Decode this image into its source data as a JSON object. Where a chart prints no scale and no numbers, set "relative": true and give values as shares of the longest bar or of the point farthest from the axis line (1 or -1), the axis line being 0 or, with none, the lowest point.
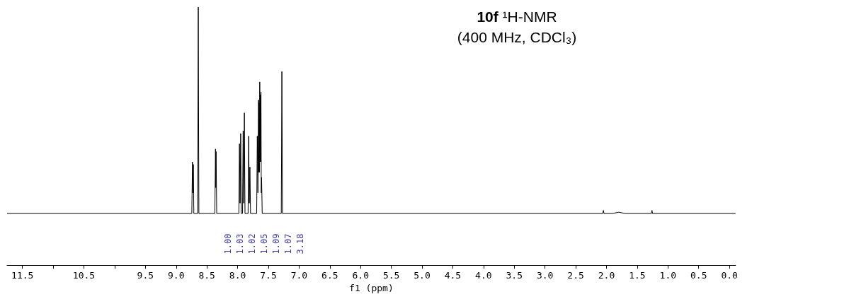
{
  "chart_data": {
    "type": "line",
    "title": "10f ¹H-NMR",
    "subtitle": "(400 MHz, CDCl₃)",
    "xlabel": "f1 (ppm)",
    "relative": true,
    "marker": "none",
    "grid": false,
    "xlim": [
      11.75,
      -0.1
    ],
    "xticks": [
      {
        "value": 11.5,
        "label": "11.5"
      },
      {
        "value": 11,
        "label": null
      },
      {
        "value": 10.5,
        "label": "10.5"
      },
      {
        "value": 10,
        "label": null
      },
      {
        "value": 9.5,
        "label": "9.5"
      },
      {
        "value": 9,
        "label": "9.0"
      },
      {
        "value": 8.5,
        "label": "8.5"
      },
      {
        "value": 8,
        "label": "8.0"
      },
      {
        "value": 7.5,
        "label": "7.5"
      },
      {
        "value": 7,
        "label": "7.0"
      },
      {
        "value": 6.5,
        "label": "6.5"
      },
      {
        "value": 6,
        "label": "6.0"
      },
      {
        "value": 5.5,
        "label": "5.5"
      },
      {
        "value": 5,
        "label": "5.0"
      },
      {
        "value": 4.5,
        "label": "4.5"
      },
      {
        "value": 4,
        "label": "4.0"
      },
      {
        "value": 3.5,
        "label": "3.5"
      },
      {
        "value": 3,
        "label": "3.0"
      },
      {
        "value": 2.5,
        "label": "2.5"
      },
      {
        "value": 2,
        "label": "2.0"
      },
      {
        "value": 1.5,
        "label": "1.5"
      },
      {
        "value": 1,
        "label": "1.0"
      },
      {
        "value": 0.5,
        "label": "0.5"
      },
      {
        "value": 0,
        "label": "0.0"
      }
    ],
    "series": [
      {
        "color": "#000000",
        "x": [
          11.75,
          8.745,
          8.735,
          8.728,
          8.72,
          8.712,
          8.65,
          8.64,
          8.63,
          8.37,
          8.36,
          8.355,
          8.35,
          8.34,
          7.98,
          7.97,
          7.96,
          7.95,
          7.94,
          7.92,
          7.91,
          7.9,
          7.89,
          7.88,
          7.83,
          7.82,
          7.81,
          7.8,
          7.79,
          7.69,
          7.68,
          7.67,
          7.66,
          7.655,
          7.65,
          7.645,
          7.64,
          7.635,
          7.63,
          7.625,
          7.62,
          7.615,
          7.61,
          7.6,
          7.29,
          7.28,
          7.27,
          2.06,
          2.05,
          2.04,
          1.9,
          1.8,
          1.7,
          1.27,
          1.26,
          1.25,
          -0.1
        ],
        "values": [
          0.2,
          0.2,
          0.4,
          0.28,
          0.39,
          0.2,
          0.2,
          1.0,
          0.2,
          0.2,
          0.45,
          0.3,
          0.44,
          0.2,
          0.2,
          0.47,
          0.24,
          0.51,
          0.2,
          0.2,
          0.52,
          0.24,
          0.59,
          0.2,
          0.2,
          0.5,
          0.24,
          0.38,
          0.2,
          0.2,
          0.5,
          0.28,
          0.64,
          0.36,
          0.63,
          0.36,
          0.71,
          0.4,
          0.66,
          0.4,
          0.67,
          0.28,
          0.34,
          0.2,
          0.2,
          0.75,
          0.2,
          0.2,
          0.212,
          0.2,
          0.2,
          0.205,
          0.2,
          0.2,
          0.212,
          0.2,
          0.2
        ]
      }
    ],
    "annotations": [
      "1.00",
      "1.03",
      "1.02",
      "1.05",
      "1.09",
      "1.07",
      "3.18"
    ]
  }
}
